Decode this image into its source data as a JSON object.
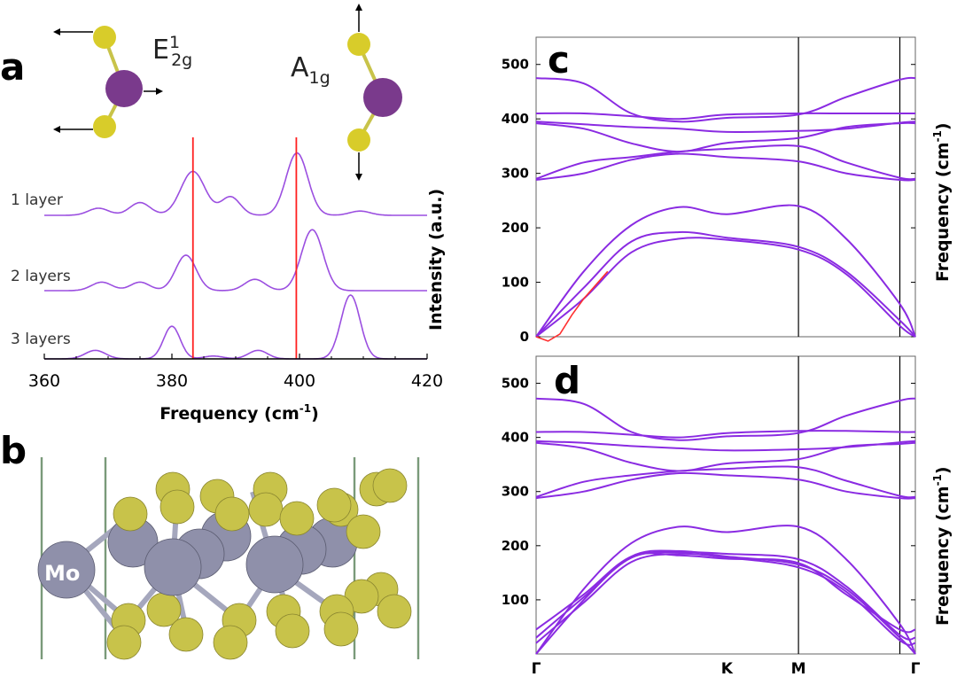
{
  "panels": {
    "a": "a",
    "b": "b",
    "c": "c",
    "d": "d"
  },
  "mode_labels": {
    "e_main": "E",
    "e_sup": "1",
    "e_sub": "2g",
    "a_main": "A",
    "a_sub": "1g"
  },
  "atom_label": "Mo",
  "colors": {
    "band": "#8a2be2",
    "spectrum": "#9b4fe0",
    "marker": "#ff2020",
    "acoustic_fit": "#ff3030",
    "mo_atom": "#8d8fa8",
    "s_atom": "#c8c34a",
    "mo_mode_atom": "#7a3a8c",
    "s_mode_atom": "#d8cc2a",
    "cell_line": "#7a9a7a"
  },
  "chart_data": [
    {
      "panel": "a",
      "type": "line",
      "xlabel": "Frequency (cm",
      "xlabel_sup": "-1",
      "xlabel_tail": ")",
      "ylabel": "Intensity (a.u.)",
      "xlim": [
        360,
        420
      ],
      "x_ticks": [
        "360",
        "380",
        "400",
        "420"
      ],
      "x_tick_values": [
        360,
        380,
        400,
        420
      ],
      "reference_lines": [
        383.3,
        399.5
      ],
      "series": [
        {
          "name": "1 layer",
          "peaks": [
            [
              368.5,
              0.1,
              1.6
            ],
            [
              375,
              0.18,
              1.6
            ],
            [
              383.3,
              0.62,
              1.9
            ],
            [
              389.2,
              0.26,
              1.5
            ],
            [
              399.6,
              0.88,
              1.7
            ],
            [
              409.5,
              0.06,
              1.6
            ]
          ]
        },
        {
          "name": "2 layers",
          "peaks": [
            [
              369,
              0.12,
              1.6
            ],
            [
              375,
              0.12,
              1.5
            ],
            [
              382.2,
              0.5,
              1.6
            ],
            [
              393,
              0.16,
              1.6
            ],
            [
              402.0,
              0.86,
              1.7
            ]
          ]
        },
        {
          "name": "3 layers",
          "peaks": [
            [
              368,
              0.12,
              1.6
            ],
            [
              380,
              0.46,
              1.3
            ],
            [
              386.5,
              0.04,
              1.5
            ],
            [
              393.5,
              0.12,
              1.5
            ],
            [
              408.0,
              0.9,
              1.5
            ]
          ]
        }
      ]
    },
    {
      "panel": "c",
      "type": "line",
      "ylabel": "Frequency (cm",
      "ylabel_sup": "-1",
      "ylabel_tail": ")",
      "ylim": [
        0,
        550
      ],
      "y_ticks": [
        "0",
        "100",
        "200",
        "300",
        "400",
        "500"
      ],
      "y_tick_values": [
        0,
        100,
        200,
        300,
        400,
        500
      ],
      "k_path": [
        0,
        1.6,
        2.2,
        3.05,
        3.18
      ],
      "k_labels": [
        "Γ",
        "K",
        "M",
        "Γ"
      ],
      "k_label_pos": [
        0,
        1.6,
        2.2,
        3.18
      ],
      "bands": [
        [
          0,
          120,
          205,
          238,
          225,
          240,
          180,
          60,
          0
        ],
        [
          0,
          90,
          175,
          192,
          182,
          165,
          120,
          30,
          0
        ],
        [
          0,
          70,
          155,
          180,
          178,
          160,
          115,
          20,
          0
        ],
        [
          288,
          300,
          325,
          336,
          330,
          322,
          300,
          288,
          288
        ],
        [
          290,
          320,
          330,
          340,
          345,
          350,
          320,
          292,
          290
        ],
        [
          392,
          382,
          355,
          340,
          356,
          365,
          385,
          392,
          392
        ],
        [
          395,
          390,
          385,
          382,
          376,
          378,
          382,
          393,
          395
        ],
        [
          410,
          410,
          405,
          400,
          408,
          410,
          410,
          410,
          410
        ],
        [
          475,
          465,
          410,
          395,
          402,
          408,
          440,
          472,
          475
        ]
      ],
      "band_x": [
        0,
        0.4,
        0.8,
        1.2,
        1.6,
        2.2,
        2.6,
        3.05,
        3.18
      ],
      "acoustic_fit": {
        "x": [
          0,
          0.1,
          0.2,
          0.3,
          0.4,
          0.5,
          0.6
        ],
        "y": [
          0,
          -8,
          5,
          40,
          70,
          95,
          120
        ]
      }
    },
    {
      "panel": "d",
      "type": "line",
      "ylabel": "Frequency (cm",
      "ylabel_sup": "-1",
      "ylabel_tail": ")",
      "ylim": [
        0,
        550
      ],
      "y_ticks": [
        "100",
        "200",
        "300",
        "400",
        "500"
      ],
      "y_tick_values": [
        100,
        200,
        300,
        400,
        500
      ],
      "k_path": [
        0,
        1.6,
        2.2,
        3.05,
        3.18
      ],
      "k_labels": [
        "Γ",
        "K",
        "M",
        "Γ"
      ],
      "k_label_pos": [
        0,
        1.6,
        2.2,
        3.18
      ],
      "bands": [
        [
          0,
          120,
          205,
          235,
          225,
          235,
          175,
          55,
          0
        ],
        [
          0,
          100,
          180,
          190,
          180,
          165,
          120,
          30,
          0
        ],
        [
          20,
          95,
          170,
          185,
          178,
          160,
          115,
          25,
          20
        ],
        [
          30,
          105,
          178,
          188,
          185,
          175,
          125,
          35,
          30
        ],
        [
          45,
          110,
          180,
          182,
          176,
          168,
          110,
          45,
          45
        ],
        [
          288,
          300,
          322,
          334,
          330,
          322,
          300,
          288,
          288
        ],
        [
          290,
          318,
          330,
          338,
          342,
          345,
          320,
          292,
          290
        ],
        [
          390,
          380,
          353,
          338,
          352,
          360,
          383,
          388,
          390
        ],
        [
          393,
          390,
          384,
          380,
          376,
          378,
          382,
          391,
          393
        ],
        [
          410,
          410,
          405,
          400,
          408,
          412,
          412,
          410,
          410
        ],
        [
          472,
          462,
          410,
          395,
          402,
          408,
          440,
          468,
          472
        ]
      ],
      "band_x": [
        0,
        0.4,
        0.8,
        1.2,
        1.6,
        2.2,
        2.6,
        3.05,
        3.18
      ]
    }
  ]
}
